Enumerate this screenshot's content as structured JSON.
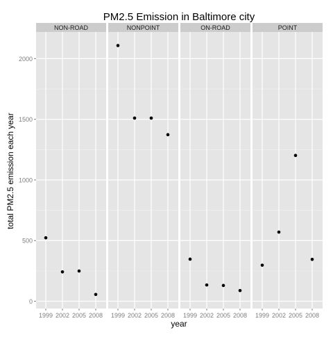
{
  "chart_data": {
    "type": "scatter",
    "title": "PM2.5 Emission in Baltimore city",
    "xlabel": "year",
    "ylabel": "total PM2.5 emission each year",
    "x_ticks": [
      "1999",
      "2002",
      "2005",
      "2008"
    ],
    "y_ticks": [
      "0",
      "500",
      "1000",
      "1500",
      "2000"
    ],
    "ylim": [
      -60,
      2220
    ],
    "panels": [
      {
        "name": "NON-ROAD",
        "x": [
          1999,
          2002,
          2005,
          2008
        ],
        "y": [
          523,
          242,
          249,
          56
        ]
      },
      {
        "name": "NONPOINT",
        "x": [
          1999,
          2002,
          2005,
          2008
        ],
        "y": [
          2108,
          1510,
          1510,
          1373
        ]
      },
      {
        "name": "ON-ROAD",
        "x": [
          1999,
          2002,
          2005,
          2008
        ],
        "y": [
          347,
          134,
          130,
          88
        ]
      },
      {
        "name": "POINT",
        "x": [
          1999,
          2002,
          2005,
          2008
        ],
        "y": [
          297,
          570,
          1202,
          345
        ]
      }
    ],
    "point_color": "#000000",
    "panel_background": "#e5e5e5",
    "strip_background": "#cccccc",
    "gridline_color": "#ffffff"
  }
}
